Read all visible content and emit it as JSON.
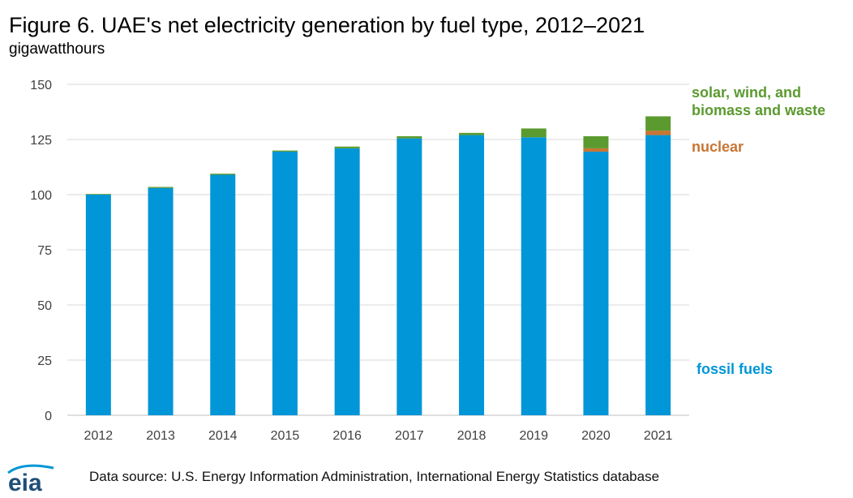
{
  "title": "Figure 6. UAE's net electricity generation by fuel type, 2012–2021",
  "subtitle": "gigawatthours",
  "source": "Data source: U.S. Energy Information Administration, International Energy Statistics database",
  "logo_text": "eia",
  "colors": {
    "fossil": "#0096d7",
    "nuclear": "#c87533",
    "renewables": "#5b9a2f",
    "grid": "#d9d9d9",
    "axis": "#bfbfbf"
  },
  "chart_data": {
    "type": "bar",
    "stacked": true,
    "categories": [
      "2012",
      "2013",
      "2014",
      "2015",
      "2016",
      "2017",
      "2018",
      "2019",
      "2020",
      "2021"
    ],
    "series": [
      {
        "name": "fossil fuels",
        "color_key": "fossil",
        "values": [
          100,
          103,
          109,
          119.5,
          121,
          125.5,
          127,
          126,
          119.5,
          127
        ]
      },
      {
        "name": "nuclear",
        "color_key": "nuclear",
        "values": [
          0,
          0,
          0,
          0,
          0,
          0,
          0,
          0,
          1.5,
          2
        ]
      },
      {
        "name": "solar, wind, and biomass and waste",
        "color_key": "renewables",
        "values": [
          0.3,
          0.5,
          0.5,
          0.5,
          0.8,
          1,
          1,
          4,
          5.5,
          6.5
        ]
      }
    ],
    "ylim": [
      0,
      150
    ],
    "yticks": [
      0,
      25,
      50,
      75,
      100,
      125,
      150
    ],
    "grid": true,
    "legend": {
      "placement": "right",
      "labels": [
        {
          "text_lines": [
            "solar, wind, and",
            "biomass and waste"
          ],
          "color_key": "renewables"
        },
        {
          "text_lines": [
            "nuclear"
          ],
          "color_key": "nuclear"
        },
        {
          "text_lines": [
            "fossil fuels"
          ],
          "color_key": "fossil"
        }
      ]
    }
  }
}
